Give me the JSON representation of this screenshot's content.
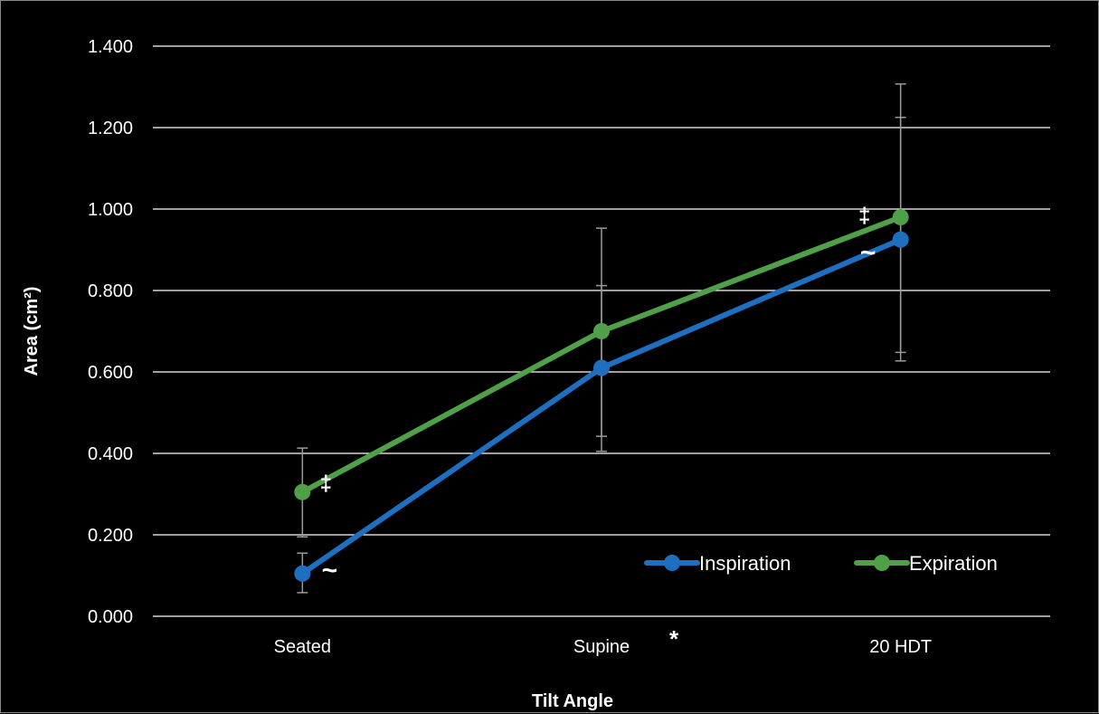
{
  "chart_data": {
    "type": "line",
    "categories": [
      "Seated",
      "Supine",
      "20 HDT"
    ],
    "series": [
      {
        "name": "Inspiration",
        "color": "#1f6fc1",
        "values": [
          0.105,
          0.61,
          0.925
        ],
        "error_low": [
          0.058,
          0.442,
          0.648
        ],
        "error_high": [
          0.155,
          0.812,
          1.225
        ]
      },
      {
        "name": "Expiration",
        "color": "#4fa048",
        "values": [
          0.305,
          0.7,
          0.98
        ],
        "error_low": [
          0.195,
          0.405,
          0.627
        ],
        "error_high": [
          0.413,
          0.953,
          1.307
        ]
      }
    ],
    "xlabel": "Tilt Angle",
    "ylabel": "Area (cm²)",
    "ylim": [
      0,
      1.4
    ],
    "yticks": [
      "0.000",
      "0.200",
      "0.400",
      "0.600",
      "0.800",
      "1.000",
      "1.200",
      "1.400"
    ],
    "grid": true,
    "legend_position": "bottom-right",
    "annotations": [
      {
        "text": "‡",
        "category": "Seated",
        "series": "Expiration"
      },
      {
        "text": "~",
        "category": "Seated",
        "series": "Inspiration"
      },
      {
        "text": "‡",
        "category": "20 HDT",
        "series": "Expiration"
      },
      {
        "text": "~",
        "category": "20 HDT",
        "series": "Inspiration"
      },
      {
        "text": "*",
        "category": "Supine",
        "series": "axis"
      }
    ]
  }
}
